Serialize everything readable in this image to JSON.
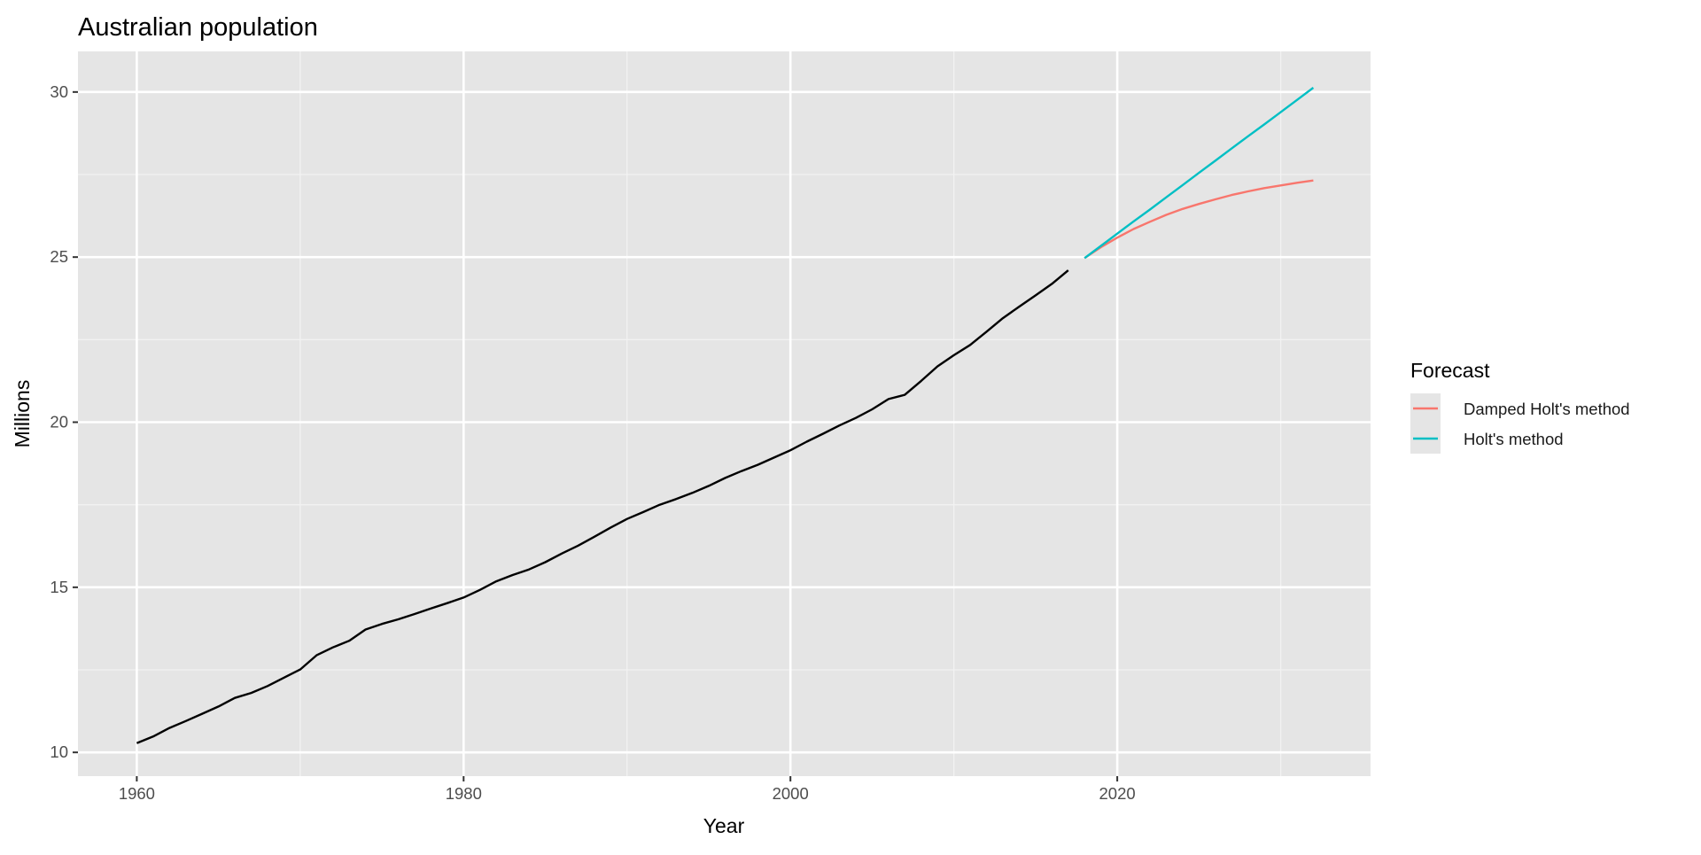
{
  "chart_data": {
    "type": "line",
    "title": "Australian population",
    "xlabel": "Year",
    "ylabel": "Millions",
    "xlim": [
      1956.4,
      2035.5
    ],
    "ylim": [
      9.28,
      31.23
    ],
    "x_ticks": [
      1960,
      1980,
      2000,
      2020
    ],
    "x_minor_ticks": [
      1970,
      1990,
      2010,
      2030
    ],
    "y_ticks": [
      10,
      15,
      20,
      25,
      30
    ],
    "y_minor_ticks": [
      12.5,
      17.5,
      22.5,
      27.5
    ],
    "grid": true,
    "legend": {
      "title": "Forecast",
      "placement": "right"
    },
    "series": [
      {
        "color": "#000000",
        "x": [
          1960,
          1961,
          1962,
          1963,
          1964,
          1965,
          1966,
          1967,
          1968,
          1969,
          1970,
          1971,
          1972,
          1973,
          1974,
          1975,
          1976,
          1977,
          1978,
          1979,
          1980,
          1981,
          1982,
          1983,
          1984,
          1985,
          1986,
          1987,
          1988,
          1989,
          1990,
          1991,
          1992,
          1993,
          1994,
          1995,
          1996,
          1997,
          1998,
          1999,
          2000,
          2001,
          2002,
          2003,
          2004,
          2005,
          2006,
          2007,
          2008,
          2009,
          2010,
          2011,
          2012,
          2013,
          2014,
          2015,
          2016,
          2017
        ],
        "y": [
          10.28,
          10.48,
          10.74,
          10.95,
          11.17,
          11.39,
          11.65,
          11.8,
          12.01,
          12.26,
          12.51,
          12.94,
          13.18,
          13.38,
          13.72,
          13.89,
          14.03,
          14.19,
          14.36,
          14.52,
          14.69,
          14.92,
          15.18,
          15.37,
          15.54,
          15.76,
          16.02,
          16.26,
          16.53,
          16.81,
          17.07,
          17.28,
          17.5,
          17.67,
          17.86,
          18.07,
          18.31,
          18.52,
          18.71,
          18.93,
          19.15,
          19.41,
          19.65,
          19.9,
          20.13,
          20.39,
          20.7,
          20.83,
          21.25,
          21.69,
          22.03,
          22.34,
          22.74,
          23.15,
          23.5,
          23.84,
          24.19,
          24.6
        ]
      },
      {
        "name": "Damped Holt's method",
        "color": "#F8766D",
        "x": [
          2018,
          2019,
          2020,
          2021,
          2022,
          2023,
          2024,
          2025,
          2026,
          2027,
          2028,
          2029,
          2030,
          2031,
          2032
        ],
        "y": [
          24.97,
          25.3,
          25.59,
          25.85,
          26.07,
          26.28,
          26.46,
          26.61,
          26.75,
          26.88,
          26.99,
          27.09,
          27.17,
          27.25,
          27.32
        ]
      },
      {
        "name": "Holt's method",
        "color": "#00BFC4",
        "x": [
          2018,
          2019,
          2020,
          2021,
          2022,
          2023,
          2024,
          2025,
          2026,
          2027,
          2028,
          2029,
          2030,
          2031,
          2032
        ],
        "y": [
          24.97,
          25.34,
          25.71,
          26.08,
          26.44,
          26.81,
          27.18,
          27.55,
          27.92,
          28.29,
          28.66,
          29.02,
          29.39,
          29.76,
          30.13
        ]
      }
    ]
  }
}
